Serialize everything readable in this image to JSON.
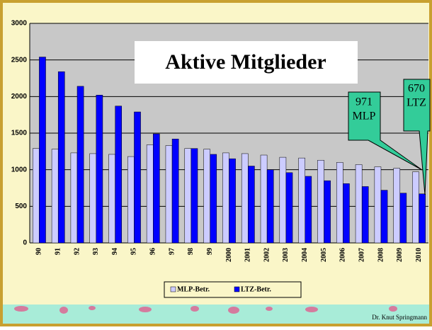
{
  "chart_data": {
    "type": "bar",
    "title": "Aktive Mitglieder",
    "categories": [
      "90",
      "91",
      "92",
      "93",
      "94",
      "95",
      "96",
      "97",
      "98",
      "99",
      "2000",
      "2001",
      "2002",
      "2003",
      "2004",
      "2005",
      "2006",
      "2007",
      "2008",
      "2009",
      "2010"
    ],
    "series": [
      {
        "name": "MLP-Betr.",
        "color": "#ccccff",
        "values": [
          1290,
          1280,
          1230,
          1220,
          1210,
          1180,
          1340,
          1330,
          1290,
          1280,
          1230,
          1220,
          1200,
          1170,
          1160,
          1130,
          1100,
          1070,
          1040,
          1020,
          971
        ]
      },
      {
        "name": "LTZ-Betr.",
        "color": "#0000ff",
        "values": [
          2540,
          2340,
          2140,
          2020,
          1870,
          1790,
          1490,
          1420,
          1290,
          1210,
          1150,
          1050,
          1000,
          960,
          910,
          850,
          810,
          770,
          720,
          680,
          670
        ]
      }
    ],
    "ylim": [
      0,
      3000
    ],
    "yticks": [
      0,
      500,
      1000,
      1500,
      2000,
      2500,
      3000
    ],
    "grid": true,
    "annotations": [
      {
        "lines": [
          "971",
          "MLP"
        ]
      },
      {
        "lines": [
          "670",
          "LTZ"
        ]
      }
    ],
    "footer": "Dr. Knut Springmann"
  }
}
